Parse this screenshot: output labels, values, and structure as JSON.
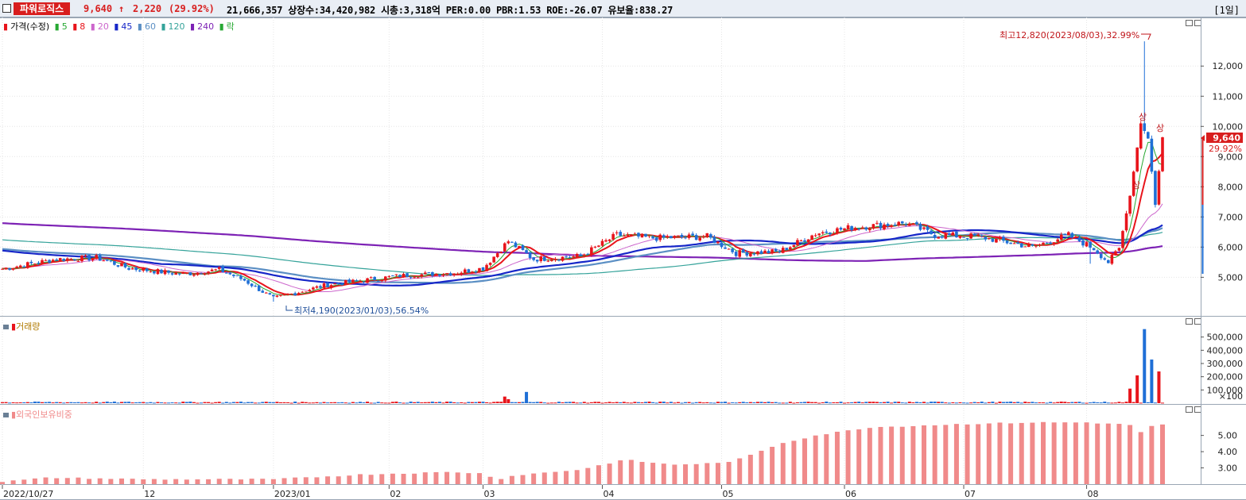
{
  "header": {
    "stock_name": "파워로직스",
    "price": "9,640",
    "change_arrow": "↑",
    "change": "2,220",
    "change_pct": "(29.92%)",
    "info": "21,666,357  상장수:34,420,982 시총:3,318억 PER:0.00 PBR:1.53 ROE:-26.07 유보율:838.27",
    "period": "[1일]"
  },
  "legend": {
    "price": "가격(수정)",
    "ma5": "5",
    "ma8": "8",
    "ma20": "20",
    "ma45": "45",
    "ma60": "60",
    "ma120": "120",
    "ma240": "240",
    "fall": "락"
  },
  "colors": {
    "up": "#e8141b",
    "down": "#1f6fd6",
    "ma5": "#26a832",
    "ma8": "#e8141b",
    "ma20": "#cc66cc",
    "ma45": "#1626c8",
    "ma60": "#5b8fc4",
    "ma120": "#35a39a",
    "ma240": "#7d22b5",
    "volume": "#e8141b",
    "foreign": "#f08a8a"
  },
  "annotations": {
    "high": "최고12,820(2023/08/03),32.99%",
    "low": "최저4,190(2023/01/03),56.54%",
    "limit_up": "상"
  },
  "current": {
    "price": "9,640",
    "pct": "29.92%"
  },
  "panels": {
    "volume": "거래량",
    "foreign": "외국인보유비중"
  },
  "chart_data": [
    {
      "type": "candlestick",
      "title": "가격(수정)",
      "y_ticks": [
        "12,000",
        "11,000",
        "10,000",
        "9,000",
        "8,000",
        "7,000",
        "6,000",
        "5,000"
      ],
      "y_values": [
        12000,
        11000,
        10000,
        9000,
        8000,
        7000,
        6000,
        5000
      ],
      "ylim": [
        3800,
        13400
      ],
      "x_ticks": [
        "2022/10/27",
        "12",
        "2023/01",
        "02",
        "03",
        "04",
        "05",
        "06",
        "07",
        "08"
      ],
      "x_tick_days": [
        0,
        39,
        75,
        107,
        133,
        166,
        199,
        233,
        266,
        300
      ],
      "days": 321,
      "high": 12820,
      "low": 4190,
      "last": 9640,
      "key_points": [
        {
          "day": 0,
          "close": 5280
        },
        {
          "day": 15,
          "close": 5600
        },
        {
          "day": 26,
          "close": 5650
        },
        {
          "day": 35,
          "close": 5300
        },
        {
          "day": 50,
          "close": 5100
        },
        {
          "day": 60,
          "close": 5250
        },
        {
          "day": 67,
          "close": 4900
        },
        {
          "day": 75,
          "close": 4300
        },
        {
          "day": 90,
          "close": 4750
        },
        {
          "day": 110,
          "close": 5050
        },
        {
          "day": 125,
          "close": 5150
        },
        {
          "day": 133,
          "close": 5300
        },
        {
          "day": 140,
          "close": 6200
        },
        {
          "day": 147,
          "close": 5600
        },
        {
          "day": 160,
          "close": 5700
        },
        {
          "day": 170,
          "close": 6400
        },
        {
          "day": 180,
          "close": 6300
        },
        {
          "day": 195,
          "close": 6350
        },
        {
          "day": 203,
          "close": 5800
        },
        {
          "day": 215,
          "close": 5850
        },
        {
          "day": 225,
          "close": 6450
        },
        {
          "day": 235,
          "close": 6650
        },
        {
          "day": 250,
          "close": 6800
        },
        {
          "day": 258,
          "close": 6400
        },
        {
          "day": 270,
          "close": 6350
        },
        {
          "day": 285,
          "close": 6000
        },
        {
          "day": 295,
          "close": 6400
        },
        {
          "day": 302,
          "close": 5950
        },
        {
          "day": 306,
          "close": 5500
        },
        {
          "day": 309,
          "close": 5950
        },
        {
          "day": 312,
          "close": 7700
        },
        {
          "day": 315,
          "close": 10100
        },
        {
          "day": 317,
          "close": 9600
        },
        {
          "day": 319,
          "close": 7400
        },
        {
          "day": 321,
          "close": 9640
        }
      ]
    },
    {
      "type": "bar",
      "title": "거래량",
      "y_ticks": [
        "500,000",
        "400,000",
        "300,000",
        "200,000",
        "100,000"
      ],
      "y_values": [
        500000,
        400000,
        300000,
        200000,
        100000
      ],
      "unit_label": "×100",
      "ylim": [
        0,
        600000
      ],
      "spikes": [
        {
          "day": 139,
          "value": 50000
        },
        {
          "day": 140,
          "value": 30000
        },
        {
          "day": 145,
          "value": 85000
        },
        {
          "day": 312,
          "value": 110000
        },
        {
          "day": 314,
          "value": 210000
        },
        {
          "day": 316,
          "value": 560000
        },
        {
          "day": 318,
          "value": 330000
        },
        {
          "day": 320,
          "value": 240000
        }
      ]
    },
    {
      "type": "bar",
      "title": "외국인보유비중",
      "y_ticks": [
        "5.00",
        "4.00",
        "3.00"
      ],
      "y_values": [
        5.0,
        4.0,
        3.0
      ],
      "ylim": [
        2.0,
        6.4
      ],
      "points": [
        {
          "day": 0,
          "value": 2.15
        },
        {
          "day": 13,
          "value": 2.4
        },
        {
          "day": 40,
          "value": 2.3
        },
        {
          "day": 75,
          "value": 2.3
        },
        {
          "day": 100,
          "value": 2.6
        },
        {
          "day": 125,
          "value": 2.75
        },
        {
          "day": 133,
          "value": 2.65
        },
        {
          "day": 137,
          "value": 2.3
        },
        {
          "day": 142,
          "value": 2.55
        },
        {
          "day": 160,
          "value": 2.9
        },
        {
          "day": 172,
          "value": 3.5
        },
        {
          "day": 185,
          "value": 3.2
        },
        {
          "day": 199,
          "value": 3.3
        },
        {
          "day": 205,
          "value": 3.6
        },
        {
          "day": 215,
          "value": 4.5
        },
        {
          "day": 225,
          "value": 5.0
        },
        {
          "day": 240,
          "value": 5.5
        },
        {
          "day": 265,
          "value": 5.7
        },
        {
          "day": 285,
          "value": 5.8
        },
        {
          "day": 300,
          "value": 5.8
        },
        {
          "day": 312,
          "value": 5.65
        },
        {
          "day": 314,
          "value": 4.9
        },
        {
          "day": 316,
          "value": 5.5
        },
        {
          "day": 321,
          "value": 5.65
        }
      ]
    }
  ]
}
